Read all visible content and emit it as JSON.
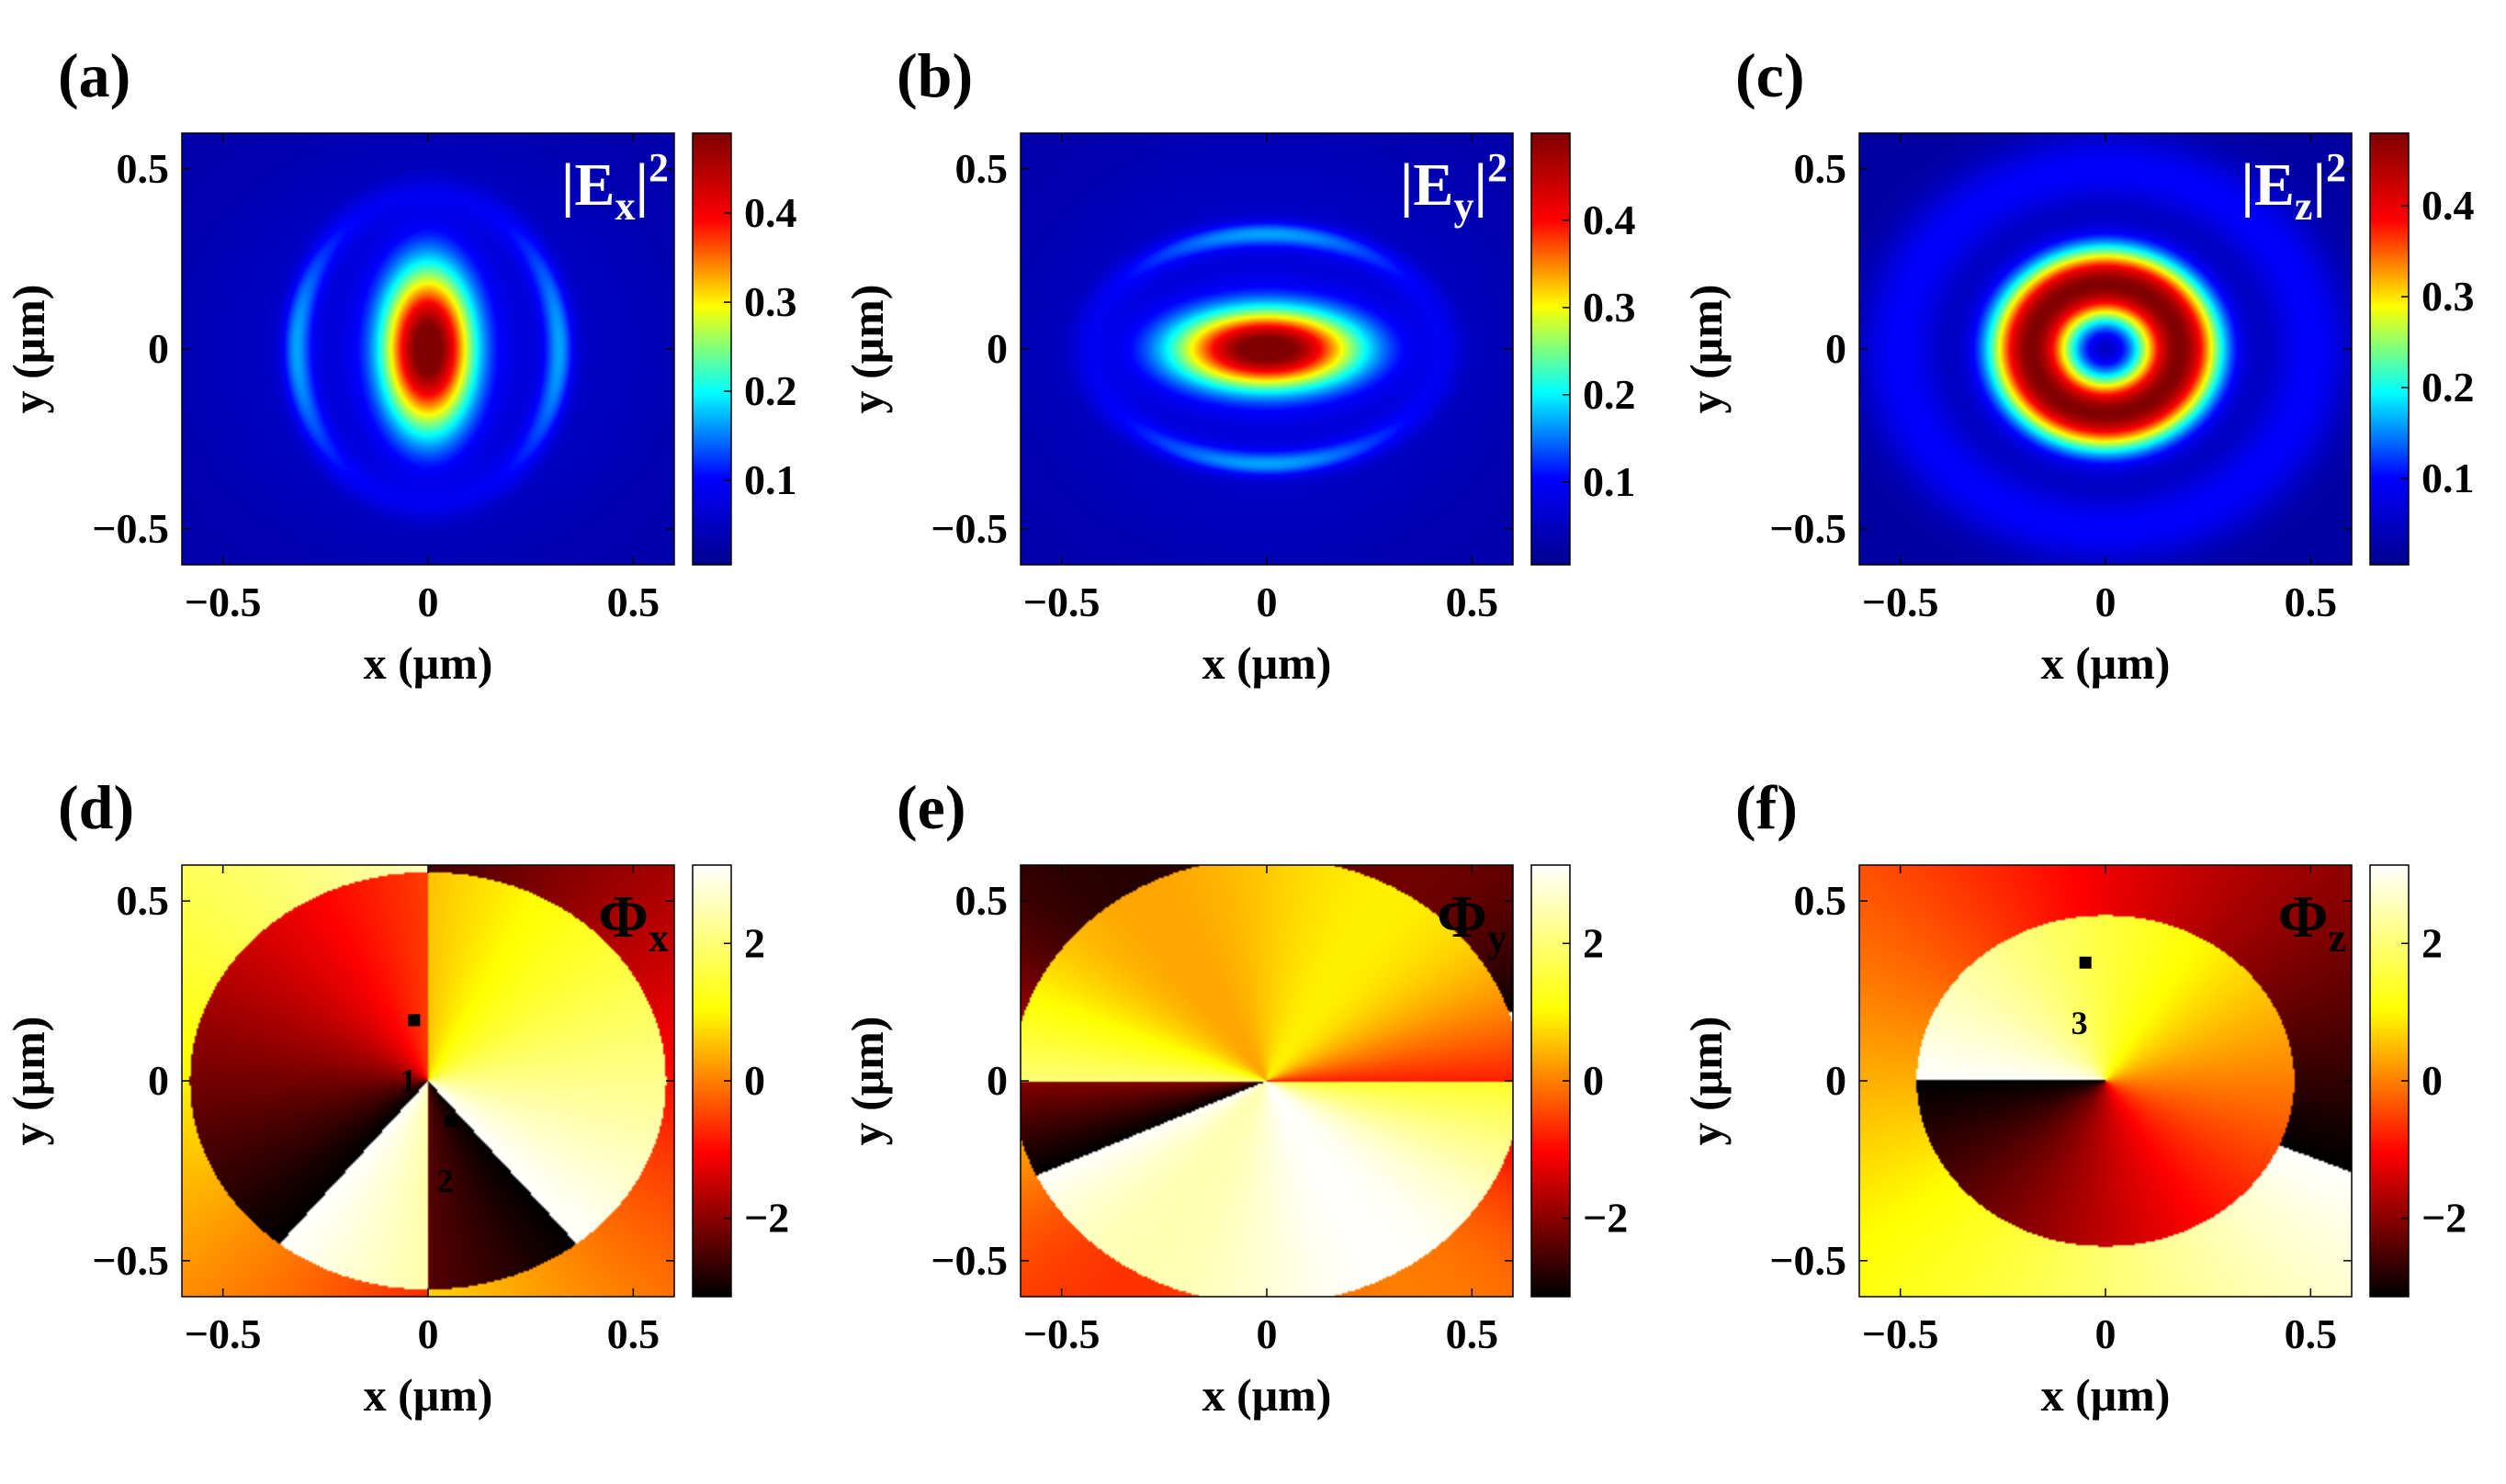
{
  "figure": {
    "colors": {
      "jet": [
        "#00008f",
        "#0000ff",
        "#00ffff",
        "#ffff00",
        "#ff0000",
        "#800000"
      ],
      "hot": [
        "#000000",
        "#ff0000",
        "#ffff00",
        "#ffffff"
      ]
    }
  },
  "chart_data": [
    {
      "id": "a",
      "panel_label": "(a)",
      "type": "heatmap",
      "quantity": "intensity",
      "field_label": {
        "main": "|E",
        "sub": "x",
        "tail": "|",
        "sup": "2"
      },
      "pattern": "ex_intensity",
      "xlabel": "x (μm)",
      "ylabel": "y (μm)",
      "xlim": [
        -0.6,
        0.6
      ],
      "ylim": [
        -0.6,
        0.6
      ],
      "xticks": [
        {
          "value": -0.5,
          "label": "−0.5"
        },
        {
          "value": 0,
          "label": "0"
        },
        {
          "value": 0.5,
          "label": "0.5"
        }
      ],
      "yticks": [
        {
          "value": 0.5,
          "label": "0.5"
        },
        {
          "value": 0,
          "label": "0"
        },
        {
          "value": -0.5,
          "label": "−0.5"
        }
      ],
      "colorbar": {
        "colormap": "jet",
        "range": [
          0.005,
          0.49
        ],
        "ticks": [
          {
            "value": 0.1,
            "label": "0.1"
          },
          {
            "value": 0.2,
            "label": "0.2"
          },
          {
            "value": 0.3,
            "label": "0.3"
          },
          {
            "value": 0.4,
            "label": "0.4"
          }
        ]
      },
      "markers": []
    },
    {
      "id": "b",
      "panel_label": "(b)",
      "type": "heatmap",
      "quantity": "intensity",
      "field_label": {
        "main": "|E",
        "sub": "y",
        "tail": "|",
        "sup": "2"
      },
      "pattern": "ey_intensity",
      "xlabel": "x (μm)",
      "ylabel": "y (μm)",
      "xlim": [
        -0.6,
        0.6
      ],
      "ylim": [
        -0.6,
        0.6
      ],
      "xticks": [
        {
          "value": -0.5,
          "label": "−0.5"
        },
        {
          "value": 0,
          "label": "0"
        },
        {
          "value": 0.5,
          "label": "0.5"
        }
      ],
      "yticks": [
        {
          "value": 0.5,
          "label": "0.5"
        },
        {
          "value": 0,
          "label": "0"
        },
        {
          "value": -0.5,
          "label": "−0.5"
        }
      ],
      "colorbar": {
        "colormap": "jet",
        "range": [
          0.005,
          0.5
        ],
        "ticks": [
          {
            "value": 0.1,
            "label": "0.1"
          },
          {
            "value": 0.2,
            "label": "0.2"
          },
          {
            "value": 0.3,
            "label": "0.3"
          },
          {
            "value": 0.4,
            "label": "0.4"
          }
        ]
      },
      "markers": []
    },
    {
      "id": "c",
      "panel_label": "(c)",
      "type": "heatmap",
      "quantity": "intensity",
      "field_label": {
        "main": "|E",
        "sub": "z",
        "tail": "|",
        "sup": "2"
      },
      "pattern": "ez_intensity",
      "xlabel": "x (μm)",
      "ylabel": "y (μm)",
      "xlim": [
        -0.6,
        0.6
      ],
      "ylim": [
        -0.6,
        0.6
      ],
      "xticks": [
        {
          "value": -0.5,
          "label": "−0.5"
        },
        {
          "value": 0,
          "label": "0"
        },
        {
          "value": 0.5,
          "label": "0.5"
        }
      ],
      "yticks": [
        {
          "value": 0.5,
          "label": "0.5"
        },
        {
          "value": 0,
          "label": "0"
        },
        {
          "value": -0.5,
          "label": "−0.5"
        }
      ],
      "colorbar": {
        "colormap": "jet",
        "range": [
          0.005,
          0.48
        ],
        "ticks": [
          {
            "value": 0.1,
            "label": "0.1"
          },
          {
            "value": 0.2,
            "label": "0.2"
          },
          {
            "value": 0.3,
            "label": "0.3"
          },
          {
            "value": 0.4,
            "label": "0.4"
          }
        ]
      },
      "markers": []
    },
    {
      "id": "d",
      "panel_label": "(d)",
      "type": "heatmap",
      "quantity": "phase",
      "field_label": {
        "main": "Φ",
        "sub": "x",
        "tail": "",
        "sup": ""
      },
      "pattern": "phase_x",
      "xlabel": "x (μm)",
      "ylabel": "y (μm)",
      "xlim": [
        -0.6,
        0.6
      ],
      "ylim": [
        -0.6,
        0.6
      ],
      "xticks": [
        {
          "value": -0.5,
          "label": "−0.5"
        },
        {
          "value": 0,
          "label": "0"
        },
        {
          "value": 0.5,
          "label": "0.5"
        }
      ],
      "yticks": [
        {
          "value": 0.5,
          "label": "0.5"
        },
        {
          "value": 0,
          "label": "0"
        },
        {
          "value": -0.5,
          "label": "−0.5"
        }
      ],
      "colorbar": {
        "colormap": "hot",
        "range": [
          -3.14,
          3.14
        ],
        "ticks": [
          {
            "value": -2,
            "label": "−2"
          },
          {
            "value": 0,
            "label": "0"
          },
          {
            "value": 2,
            "label": "2"
          }
        ]
      },
      "markers": [
        {
          "label": "1",
          "x": -0.035,
          "y": 0.17
        },
        {
          "label": "2",
          "x": 0.055,
          "y": -0.11
        }
      ]
    },
    {
      "id": "e",
      "panel_label": "(e)",
      "type": "heatmap",
      "quantity": "phase",
      "field_label": {
        "main": "Φ",
        "sub": "y",
        "tail": "",
        "sup": ""
      },
      "pattern": "phase_y",
      "xlabel": "x (μm)",
      "ylabel": "y (μm)",
      "xlim": [
        -0.6,
        0.6
      ],
      "ylim": [
        -0.6,
        0.6
      ],
      "xticks": [
        {
          "value": -0.5,
          "label": "−0.5"
        },
        {
          "value": 0,
          "label": "0"
        },
        {
          "value": 0.5,
          "label": "0.5"
        }
      ],
      "yticks": [
        {
          "value": 0.5,
          "label": "0.5"
        },
        {
          "value": 0,
          "label": "0"
        },
        {
          "value": -0.5,
          "label": "−0.5"
        }
      ],
      "colorbar": {
        "colormap": "hot",
        "range": [
          -3.14,
          3.14
        ],
        "ticks": [
          {
            "value": -2,
            "label": "−2"
          },
          {
            "value": 0,
            "label": "0"
          },
          {
            "value": 2,
            "label": "2"
          }
        ]
      },
      "markers": []
    },
    {
      "id": "f",
      "panel_label": "(f)",
      "type": "heatmap",
      "quantity": "phase",
      "field_label": {
        "main": "Φ",
        "sub": "z",
        "tail": "",
        "sup": ""
      },
      "pattern": "phase_z",
      "xlabel": "x (μm)",
      "ylabel": "y (μm)",
      "xlim": [
        -0.6,
        0.6
      ],
      "ylim": [
        -0.6,
        0.6
      ],
      "xticks": [
        {
          "value": -0.5,
          "label": "−0.5"
        },
        {
          "value": 0,
          "label": "0"
        },
        {
          "value": 0.5,
          "label": "0.5"
        }
      ],
      "yticks": [
        {
          "value": 0.5,
          "label": "0.5"
        },
        {
          "value": 0,
          "label": "0"
        },
        {
          "value": -0.5,
          "label": "−0.5"
        }
      ],
      "colorbar": {
        "colormap": "hot",
        "range": [
          -3.14,
          3.14
        ],
        "ticks": [
          {
            "value": -2,
            "label": "−2"
          },
          {
            "value": 0,
            "label": "0"
          },
          {
            "value": 2,
            "label": "2"
          }
        ]
      },
      "markers": [
        {
          "label": "3",
          "x": -0.05,
          "y": 0.33
        }
      ]
    }
  ]
}
